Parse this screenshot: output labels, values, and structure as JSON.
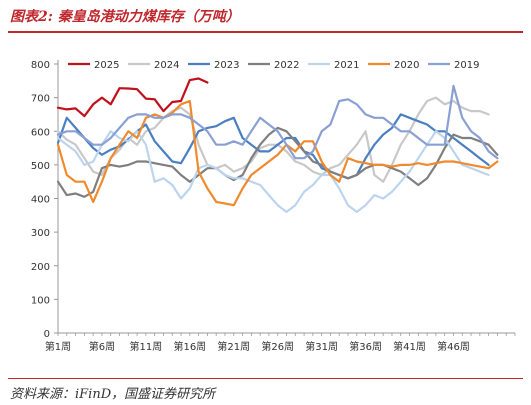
{
  "header": {
    "title": "图表2:  秦皇岛港动力煤库存（万吨）"
  },
  "footer": {
    "source": "资料来源：iFinD，国盛证券研究所"
  },
  "chart_data": {
    "type": "line",
    "unit": "万吨",
    "ylim": [
      0,
      800
    ],
    "yticks": [
      0,
      100,
      200,
      300,
      400,
      500,
      600,
      700,
      800
    ],
    "x_count": 53,
    "xticks": [
      {
        "week": 1,
        "label": "第1周"
      },
      {
        "week": 6,
        "label": "第6周"
      },
      {
        "week": 11,
        "label": "第11周"
      },
      {
        "week": 16,
        "label": "第16周"
      },
      {
        "week": 21,
        "label": "第21周"
      },
      {
        "week": 26,
        "label": "第26周"
      },
      {
        "week": 31,
        "label": "第31周"
      },
      {
        "week": 36,
        "label": "第36周"
      },
      {
        "week": 41,
        "label": "第41周"
      },
      {
        "week": 46,
        "label": "第46周"
      }
    ],
    "legend_position": "top",
    "series": [
      {
        "name": "2025",
        "color": "#c0101b",
        "values": [
          670,
          665,
          668,
          645,
          680,
          700,
          680,
          728,
          727,
          725,
          697,
          695,
          660,
          687,
          690,
          752,
          757,
          745
        ]
      },
      {
        "name": "2024",
        "color": "#c8c8c8",
        "values": [
          600,
          575,
          560,
          520,
          480,
          470,
          520,
          545,
          580,
          560,
          600,
          610,
          640,
          660,
          670,
          650,
          560,
          500,
          490,
          500,
          480,
          490,
          510,
          550,
          560,
          560,
          540,
          510,
          500,
          480,
          470,
          490,
          500,
          530,
          560,
          600,
          470,
          450,
          500,
          560,
          600,
          650,
          690,
          700,
          680,
          690,
          670,
          660,
          660,
          650
        ]
      },
      {
        "name": "2023",
        "color": "#4a7fc1",
        "values": [
          565,
          640,
          610,
          580,
          550,
          530,
          545,
          555,
          575,
          600,
          620,
          570,
          540,
          510,
          505,
          550,
          600,
          610,
          615,
          630,
          640,
          580,
          560,
          540,
          540,
          560,
          580,
          580,
          540,
          530,
          490,
          480,
          470,
          460,
          470,
          520,
          560,
          590,
          610,
          650,
          640,
          630,
          620,
          600,
          600,
          580,
          560,
          540,
          520,
          500
        ]
      },
      {
        "name": "2022",
        "color": "#7f7f7f",
        "values": [
          450,
          410,
          415,
          405,
          420,
          490,
          500,
          495,
          500,
          510,
          510,
          505,
          500,
          495,
          470,
          450,
          470,
          490,
          490,
          470,
          455,
          470,
          520,
          560,
          590,
          610,
          600,
          570,
          540,
          510,
          500,
          480,
          470,
          460,
          470,
          490,
          500,
          500,
          490,
          480,
          460,
          440,
          460,
          500,
          550,
          590,
          580,
          580,
          570,
          560,
          530
        ]
      },
      {
        "name": "2021",
        "color": "#bcd4ee",
        "values": [
          580,
          560,
          540,
          500,
          510,
          560,
          600,
          580,
          570,
          600,
          560,
          450,
          460,
          440,
          400,
          430,
          490,
          500,
          490,
          470,
          460,
          460,
          450,
          440,
          410,
          380,
          360,
          380,
          420,
          440,
          470,
          470,
          430,
          380,
          360,
          380,
          410,
          400,
          420,
          450,
          480,
          520,
          560,
          600,
          580,
          540,
          500,
          490,
          480,
          470
        ]
      },
      {
        "name": "2020",
        "color": "#f08a2c",
        "values": [
          560,
          470,
          450,
          450,
          390,
          450,
          520,
          560,
          600,
          580,
          640,
          650,
          640,
          655,
          680,
          690,
          480,
          430,
          390,
          385,
          380,
          430,
          470,
          490,
          510,
          530,
          560,
          540,
          570,
          570,
          510,
          470,
          450,
          520,
          510,
          505,
          500,
          500,
          495,
          500,
          500,
          505,
          500,
          505,
          510,
          510,
          505,
          500,
          495,
          490,
          510
        ]
      },
      {
        "name": "2019",
        "color": "#8a9fd4",
        "values": [
          590,
          600,
          600,
          580,
          560,
          560,
          580,
          610,
          640,
          650,
          650,
          640,
          640,
          650,
          650,
          640,
          620,
          600,
          560,
          560,
          570,
          560,
          600,
          640,
          620,
          600,
          560,
          520,
          520,
          540,
          600,
          620,
          690,
          695,
          680,
          650,
          640,
          640,
          620,
          600,
          600,
          580,
          560,
          560,
          560,
          735,
          640,
          600,
          580,
          540,
          520
        ]
      }
    ]
  }
}
